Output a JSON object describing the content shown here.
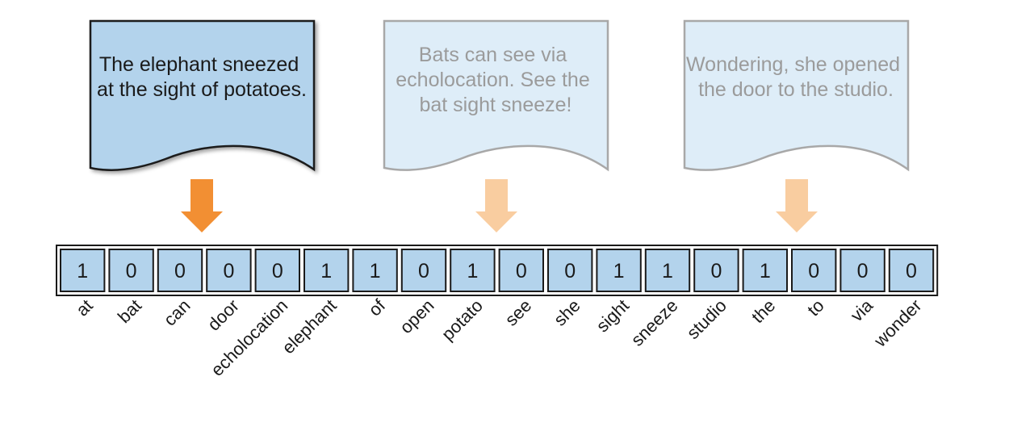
{
  "documents": [
    {
      "lines": [
        "The elephant sneezed",
        "at the sight of potatoes."
      ],
      "state": "active"
    },
    {
      "lines": [
        "Bats can see via",
        "echolocation. See the",
        "bat sight sneeze!"
      ],
      "state": "faded"
    },
    {
      "lines": [
        "Wondering, she opened",
        "the door to the studio."
      ],
      "state": "faded"
    }
  ],
  "vector": {
    "values": [
      "1",
      "0",
      "0",
      "0",
      "0",
      "1",
      "1",
      "0",
      "1",
      "0",
      "0",
      "1",
      "1",
      "0",
      "1",
      "0",
      "0",
      "0"
    ],
    "vocabulary": [
      "at",
      "bat",
      "can",
      "door",
      "echolocation",
      "elephant",
      "of",
      "open",
      "potato",
      "see",
      "she",
      "sight",
      "sneeze",
      "studio",
      "the",
      "to",
      "via",
      "wonder"
    ]
  },
  "colors": {
    "active_fill": "#b3d3ec",
    "active_stroke": "#1a1a1a",
    "active_text": "#1a1a1a",
    "faded_fill": "#deedf8",
    "faded_stroke": "#a8a8a8",
    "faded_text": "#9b9b9b",
    "arrow_active": "#f28f33",
    "arrow_faded": "#f9cda0",
    "cell_fill": "#b3d3ec",
    "cell_stroke": "#1a1a1a"
  }
}
